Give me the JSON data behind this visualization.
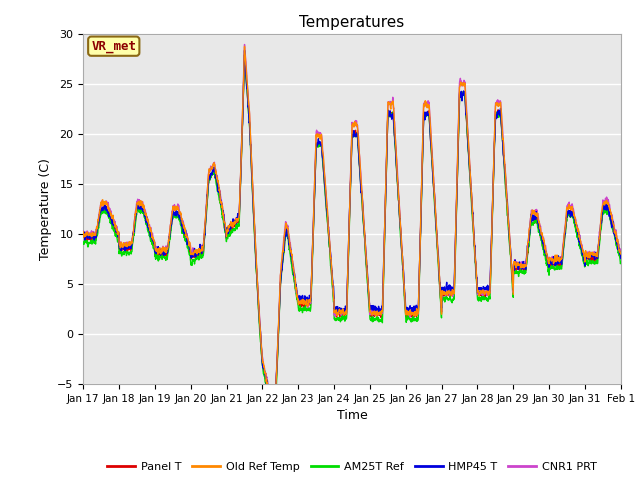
{
  "title": "Temperatures",
  "xlabel": "Time",
  "ylabel": "Temperature (C)",
  "ylim": [
    -5,
    30
  ],
  "xlim": [
    0,
    15
  ],
  "fig_bg": "#ffffff",
  "plot_bg": "#e8e8e8",
  "series_colors": {
    "Panel T": "#dd0000",
    "Old Ref Temp": "#ff8800",
    "AM25T Ref": "#00dd00",
    "HMP45 T": "#0000dd",
    "CNR1 PRT": "#cc44cc"
  },
  "x_tick_labels": [
    "Jan 17",
    "Jan 18",
    "Jan 19",
    "Jan 20",
    "Jan 21",
    "Jan 22",
    "Jan 23",
    "Jan 24",
    "Jan 25",
    "Jan 26",
    "Jan 27",
    "Jan 28",
    "Jan 29",
    "Jan 30",
    "Jan 31",
    "Feb 1"
  ],
  "annotation_text": "VR_met",
  "yticks": [
    -5,
    0,
    5,
    10,
    15,
    20,
    25,
    30
  ],
  "n_points": 3000
}
